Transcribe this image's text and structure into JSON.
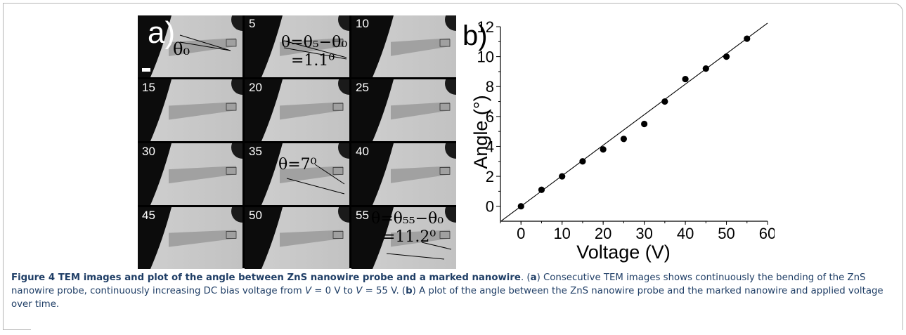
{
  "figure": {
    "panel_a_label": "a)",
    "panel_b_label": "b)",
    "tem_panels": [
      {
        "num": "",
        "annotations": [
          {
            "text": "θ₀"
          }
        ]
      },
      {
        "num": "5",
        "annotations": [
          {
            "text": "θ=θ₅−θ₀"
          },
          {
            "text": "=1.1⁰"
          }
        ]
      },
      {
        "num": "10",
        "annotations": []
      },
      {
        "num": "15",
        "annotations": []
      },
      {
        "num": "20",
        "annotations": []
      },
      {
        "num": "25",
        "annotations": []
      },
      {
        "num": "30",
        "annotations": []
      },
      {
        "num": "35",
        "annotations": [
          {
            "text": "θ=7⁰"
          }
        ]
      },
      {
        "num": "40",
        "annotations": []
      },
      {
        "num": "45",
        "annotations": []
      },
      {
        "num": "50",
        "annotations": []
      },
      {
        "num": "55",
        "annotations": [
          {
            "text": "θ=θ₅₅−θ₀"
          },
          {
            "text": "=11.2⁰"
          }
        ]
      }
    ]
  },
  "chart_data": {
    "type": "scatter",
    "xlabel": "Voltage (V)",
    "ylabel": "Angle (°)",
    "xlim": [
      -5,
      60
    ],
    "ylim": [
      -1,
      12
    ],
    "x_ticks": [
      0,
      10,
      20,
      30,
      40,
      50,
      60
    ],
    "y_ticks": [
      0,
      2,
      4,
      6,
      8,
      10,
      12
    ],
    "x": [
      0,
      5,
      10,
      15,
      20,
      25,
      30,
      35,
      40,
      45,
      50,
      55
    ],
    "y": [
      0.0,
      1.1,
      2.0,
      3.0,
      3.8,
      4.5,
      5.5,
      7.0,
      8.5,
      9.2,
      10.0,
      11.2
    ],
    "fit_line": {
      "x": [
        -5,
        60
      ],
      "y": [
        -1.02,
        12.24
      ]
    },
    "grid": false,
    "legend": "none"
  },
  "caption": {
    "title": "Figure 4 TEM images and plot of the angle between ZnS nanowire probe and a marked nanowire",
    "after_title": ". (",
    "a_letter": "a",
    "a_text_1": ") Consecutive TEM images shows continuously the bending of the ZnS nanowire probe, continuously increasing DC bias voltage from ",
    "v1_var": "V",
    "v1_text": " = 0 V to ",
    "v2_var": "V",
    "v2_text": " = 55 V. (",
    "b_letter": "b",
    "b_text": ") A plot of the angle between the ZnS nanowire probe and the marked nanowire and applied voltage over time."
  }
}
